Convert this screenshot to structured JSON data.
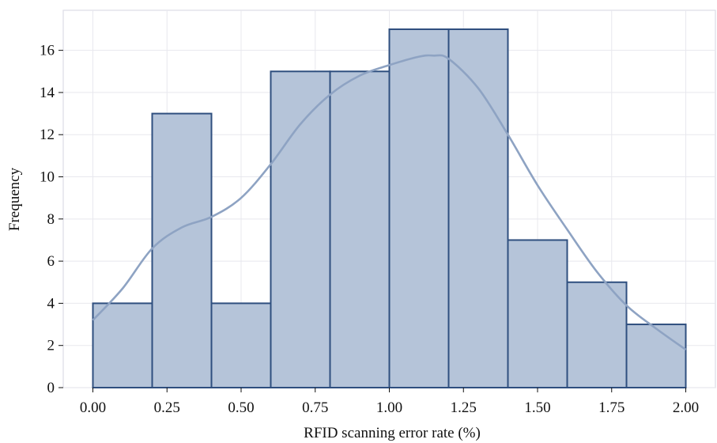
{
  "chart_data": {
    "type": "bar",
    "subtype": "histogram-with-kde",
    "xlabel": "RFID scanning error rate (%)",
    "ylabel": "Frequency",
    "xlim": [
      -0.1,
      2.1
    ],
    "ylim": [
      0,
      17.9
    ],
    "xticks": [
      "0.00",
      "0.25",
      "0.50",
      "0.75",
      "1.00",
      "1.25",
      "1.50",
      "1.75",
      "2.00"
    ],
    "xtick_values": [
      0,
      0.25,
      0.5,
      0.75,
      1.0,
      1.25,
      1.5,
      1.75,
      2.0
    ],
    "yticks": [
      0,
      2,
      4,
      6,
      8,
      10,
      12,
      14,
      16
    ],
    "bin_edges": [
      0.0,
      0.2,
      0.4,
      0.6,
      0.8,
      1.0,
      1.2,
      1.4,
      1.6,
      1.8,
      2.0
    ],
    "values": [
      4,
      13,
      4,
      15,
      15,
      17,
      17,
      7,
      5,
      3
    ],
    "kde": {
      "x": [
        0.0,
        0.1,
        0.2,
        0.3,
        0.4,
        0.5,
        0.6,
        0.7,
        0.8,
        0.9,
        1.0,
        1.1,
        1.15,
        1.2,
        1.3,
        1.4,
        1.5,
        1.6,
        1.7,
        1.8,
        1.9,
        2.0
      ],
      "y": [
        3.2,
        4.7,
        6.6,
        7.6,
        8.1,
        9.0,
        10.6,
        12.5,
        13.9,
        14.8,
        15.3,
        15.7,
        15.75,
        15.6,
        14.2,
        12.0,
        9.6,
        7.5,
        5.5,
        3.9,
        2.8,
        1.8
      ]
    },
    "colors": {
      "bar_fill": "#b5c4d9",
      "bar_edge": "#2f4f7f",
      "kde_line": "#8ea3c3"
    },
    "grid": true
  }
}
